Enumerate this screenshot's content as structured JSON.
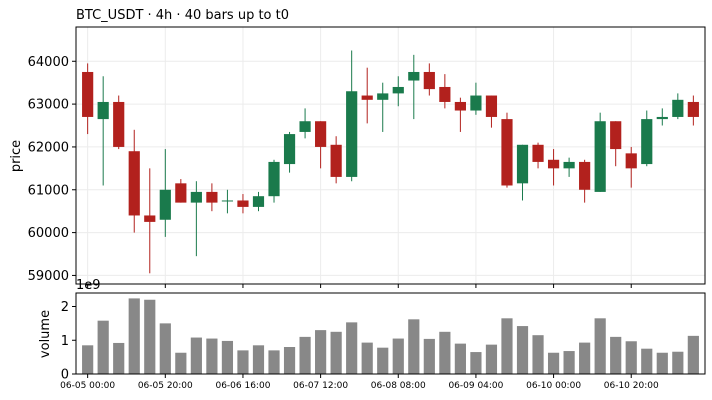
{
  "chart_data": {
    "type": "candlestick",
    "title": "BTC_USDT  ·  4h  ·  40 bars up to t0",
    "colors": {
      "up": "#1a7a4c",
      "down": "#b2211d",
      "volume": "#888888",
      "grid": "#ececec"
    },
    "price_panel": {
      "ylabel": "price",
      "ylim": [
        58800,
        64800
      ],
      "yticks": [
        59000,
        60000,
        61000,
        62000,
        63000,
        64000
      ],
      "ytick_labels": [
        "59000",
        "60000",
        "61000",
        "62000",
        "63000",
        "64000"
      ],
      "grid": true
    },
    "volume_panel": {
      "ylabel": "volume",
      "scale_label": "1e9",
      "ylim": [
        0,
        2.4
      ],
      "yticks": [
        0,
        1,
        2
      ],
      "ytick_labels": [
        "0",
        "1",
        "2"
      ]
    },
    "x_tick_labels": [
      {
        "bar": 0,
        "label": "06-05 00:00"
      },
      {
        "bar": 5,
        "label": "06-05 20:00"
      },
      {
        "bar": 10,
        "label": "06-06 16:00"
      },
      {
        "bar": 15,
        "label": "06-07 12:00"
      },
      {
        "bar": 20,
        "label": "06-08 08:00"
      },
      {
        "bar": 25,
        "label": "06-09 04:00"
      },
      {
        "bar": 30,
        "label": "06-10 00:00"
      },
      {
        "bar": 35,
        "label": "06-10 20:00"
      }
    ],
    "ohlc": [
      {
        "o": 63750,
        "h": 63950,
        "l": 62300,
        "c": 62700
      },
      {
        "o": 62650,
        "h": 63650,
        "l": 61100,
        "c": 63050
      },
      {
        "o": 63050,
        "h": 63200,
        "l": 61950,
        "c": 62000
      },
      {
        "o": 61900,
        "h": 62400,
        "l": 60000,
        "c": 60400
      },
      {
        "o": 60400,
        "h": 61500,
        "l": 59050,
        "c": 60250
      },
      {
        "o": 60300,
        "h": 61950,
        "l": 59900,
        "c": 61000
      },
      {
        "o": 61150,
        "h": 61250,
        "l": 60700,
        "c": 60700
      },
      {
        "o": 60700,
        "h": 61200,
        "l": 59450,
        "c": 60950
      },
      {
        "o": 60950,
        "h": 61150,
        "l": 60500,
        "c": 60700
      },
      {
        "o": 60750,
        "h": 61000,
        "l": 60450,
        "c": 60750
      },
      {
        "o": 60750,
        "h": 60900,
        "l": 60450,
        "c": 60600
      },
      {
        "o": 60600,
        "h": 60950,
        "l": 60500,
        "c": 60850
      },
      {
        "o": 60850,
        "h": 61700,
        "l": 60700,
        "c": 61650
      },
      {
        "o": 61600,
        "h": 62350,
        "l": 61400,
        "c": 62300
      },
      {
        "o": 62350,
        "h": 62900,
        "l": 62200,
        "c": 62600
      },
      {
        "o": 62600,
        "h": 62600,
        "l": 61500,
        "c": 62000
      },
      {
        "o": 62050,
        "h": 62250,
        "l": 61150,
        "c": 61300
      },
      {
        "o": 61300,
        "h": 64250,
        "l": 61200,
        "c": 63300
      },
      {
        "o": 63200,
        "h": 63850,
        "l": 62550,
        "c": 63100
      },
      {
        "o": 63100,
        "h": 63500,
        "l": 62350,
        "c": 63250
      },
      {
        "o": 63250,
        "h": 63650,
        "l": 62950,
        "c": 63400
      },
      {
        "o": 63550,
        "h": 64150,
        "l": 62650,
        "c": 63750
      },
      {
        "o": 63750,
        "h": 63950,
        "l": 63200,
        "c": 63350
      },
      {
        "o": 63400,
        "h": 63700,
        "l": 62900,
        "c": 63050
      },
      {
        "o": 63050,
        "h": 63150,
        "l": 62350,
        "c": 62850
      },
      {
        "o": 62850,
        "h": 63500,
        "l": 62750,
        "c": 63200
      },
      {
        "o": 63200,
        "h": 63200,
        "l": 62450,
        "c": 62700
      },
      {
        "o": 62650,
        "h": 62800,
        "l": 61050,
        "c": 61100
      },
      {
        "o": 61150,
        "h": 62050,
        "l": 60750,
        "c": 62050
      },
      {
        "o": 62050,
        "h": 62100,
        "l": 61500,
        "c": 61650
      },
      {
        "o": 61700,
        "h": 61950,
        "l": 61100,
        "c": 61500
      },
      {
        "o": 61500,
        "h": 61750,
        "l": 61300,
        "c": 61650
      },
      {
        "o": 61650,
        "h": 61700,
        "l": 60700,
        "c": 61000
      },
      {
        "o": 60950,
        "h": 62800,
        "l": 60950,
        "c": 62600
      },
      {
        "o": 62600,
        "h": 62600,
        "l": 61550,
        "c": 61950
      },
      {
        "o": 61850,
        "h": 62000,
        "l": 61050,
        "c": 61500
      },
      {
        "o": 61600,
        "h": 62850,
        "l": 61550,
        "c": 62650
      },
      {
        "o": 62650,
        "h": 62900,
        "l": 62500,
        "c": 62700
      },
      {
        "o": 62700,
        "h": 63250,
        "l": 62650,
        "c": 63100
      },
      {
        "o": 63050,
        "h": 63200,
        "l": 62500,
        "c": 62700
      }
    ],
    "volume": [
      0.85,
      1.58,
      0.92,
      2.24,
      2.2,
      1.5,
      0.63,
      1.08,
      1.05,
      0.98,
      0.7,
      0.85,
      0.7,
      0.8,
      1.1,
      1.3,
      1.25,
      1.53,
      0.93,
      0.78,
      1.05,
      1.62,
      1.04,
      1.25,
      0.9,
      0.65,
      0.87,
      1.65,
      1.42,
      1.15,
      0.63,
      0.68,
      0.93,
      1.65,
      1.1,
      0.97,
      0.75,
      0.63,
      0.66,
      1.13
    ]
  }
}
